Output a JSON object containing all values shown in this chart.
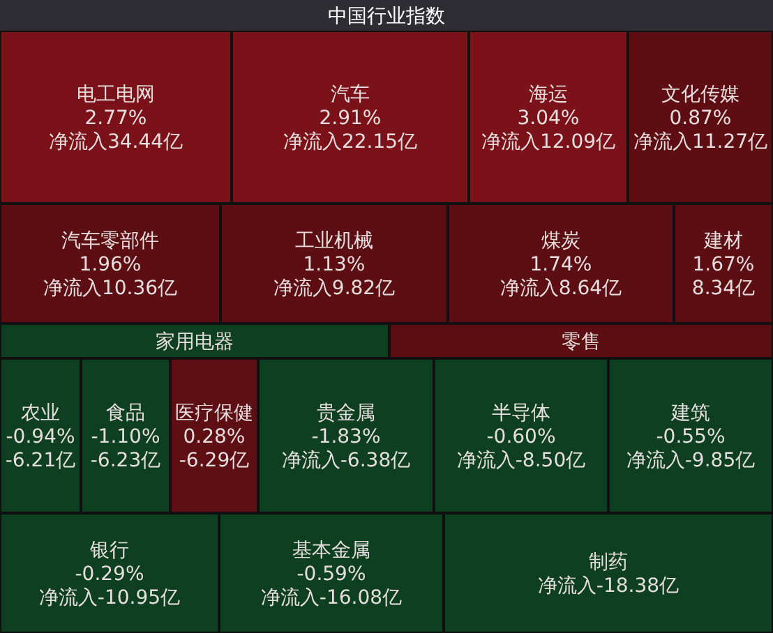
{
  "chart_data": {
    "type": "other",
    "title": "中国行业指数",
    "categories": [
      "电工电网",
      "汽车",
      "海运",
      "文化传媒",
      "汽车零部件",
      "工业机械",
      "煤炭",
      "建材",
      "家用电器",
      "零售",
      "农业",
      "食品",
      "医疗保健",
      "贵金属",
      "半导体",
      "建筑",
      "银行",
      "基本金属",
      "制药"
    ],
    "series": [
      {
        "colors": [
          "#7c1219",
          "#7c1219",
          "#7c1219",
          "#5e0e13",
          "#5c0e13",
          "#5c0e13",
          "#5c0e13",
          "#5c0e13",
          "#0e3f21",
          "#5c0e13",
          "#0e3f21",
          "#0e3f21",
          "#5e0f14",
          "#0e3f21",
          "#0e3f21",
          "#0e3f21",
          "#0e3f21",
          "#0e3f21",
          "#0e3f21"
        ],
        "values": [
          2.77,
          2.91,
          3.04,
          0.87,
          1.96,
          1.13,
          1.74,
          1.67,
          null,
          null,
          -0.94,
          -1.1,
          0.28,
          -1.83,
          -0.6,
          -0.55,
          -0.29,
          -0.59,
          null
        ],
        "value_labels": [
          "2.77%",
          "2.91%",
          "3.04%",
          "0.87%",
          "1.96%",
          "1.13%",
          "1.74%",
          "1.67%",
          null,
          null,
          "-0.94%",
          "-1.10%",
          "0.28%",
          "-1.83%",
          "-0.60%",
          "-0.55%",
          "-0.29%",
          "-0.59%",
          null
        ]
      },
      {
        "values": [
          34.44,
          22.15,
          12.09,
          11.27,
          10.36,
          9.82,
          8.64,
          8.34,
          null,
          null,
          -6.21,
          -6.23,
          -6.29,
          -6.38,
          -8.5,
          -9.85,
          -10.95,
          -16.08,
          -18.38
        ],
        "value_labels": [
          "净流入34.44亿",
          "净流入22.15亿",
          "净流入12.09亿",
          "净流入11.27亿",
          "净流入10.36亿",
          "净流入9.82亿",
          "净流入8.64亿",
          "8.34亿",
          null,
          null,
          "-6.21亿",
          "-6.23亿",
          "-6.29亿",
          "净流入-6.38亿",
          "净流入-8.50亿",
          "净流入-9.85亿",
          "净流入-10.95亿",
          "净流入-16.08亿",
          "净流入-18.38亿"
        ]
      }
    ]
  }
}
